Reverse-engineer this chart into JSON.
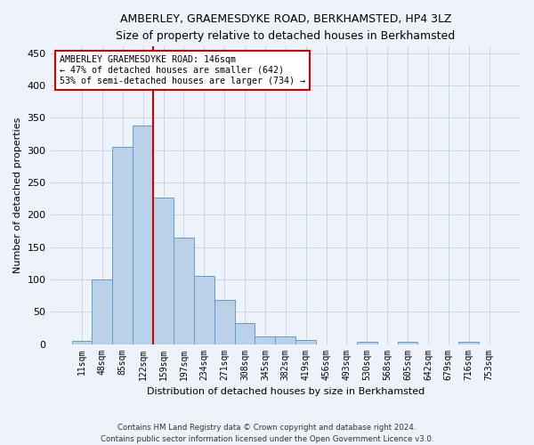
{
  "title": "AMBERLEY, GRAEMESDYKE ROAD, BERKHAMSTED, HP4 3LZ",
  "subtitle": "Size of property relative to detached houses in Berkhamsted",
  "xlabel": "Distribution of detached houses by size in Berkhamsted",
  "ylabel": "Number of detached properties",
  "footer_line1": "Contains HM Land Registry data © Crown copyright and database right 2024.",
  "footer_line2": "Contains public sector information licensed under the Open Government Licence v3.0.",
  "bar_labels": [
    "11sqm",
    "48sqm",
    "85sqm",
    "122sqm",
    "159sqm",
    "197sqm",
    "234sqm",
    "271sqm",
    "308sqm",
    "345sqm",
    "382sqm",
    "419sqm",
    "456sqm",
    "493sqm",
    "530sqm",
    "568sqm",
    "605sqm",
    "642sqm",
    "679sqm",
    "716sqm",
    "753sqm"
  ],
  "bar_values": [
    5,
    100,
    305,
    338,
    226,
    165,
    106,
    68,
    32,
    12,
    12,
    6,
    0,
    0,
    3,
    0,
    3,
    0,
    0,
    3,
    0
  ],
  "bar_color": "#b8d0e8",
  "bar_edge_color": "#6699cc",
  "ylim": [
    0,
    460
  ],
  "yticks": [
    0,
    50,
    100,
    150,
    200,
    250,
    300,
    350,
    400,
    450
  ],
  "annotation_title": "AMBERLEY GRAEMESDYKE ROAD: 146sqm",
  "annotation_line1": "← 47% of detached houses are smaller (642)",
  "annotation_line2": "53% of semi-detached houses are larger (734) →",
  "vline_color": "#cc0000",
  "bg_color": "#eef2fa",
  "grid_color": "#c8d4e8"
}
